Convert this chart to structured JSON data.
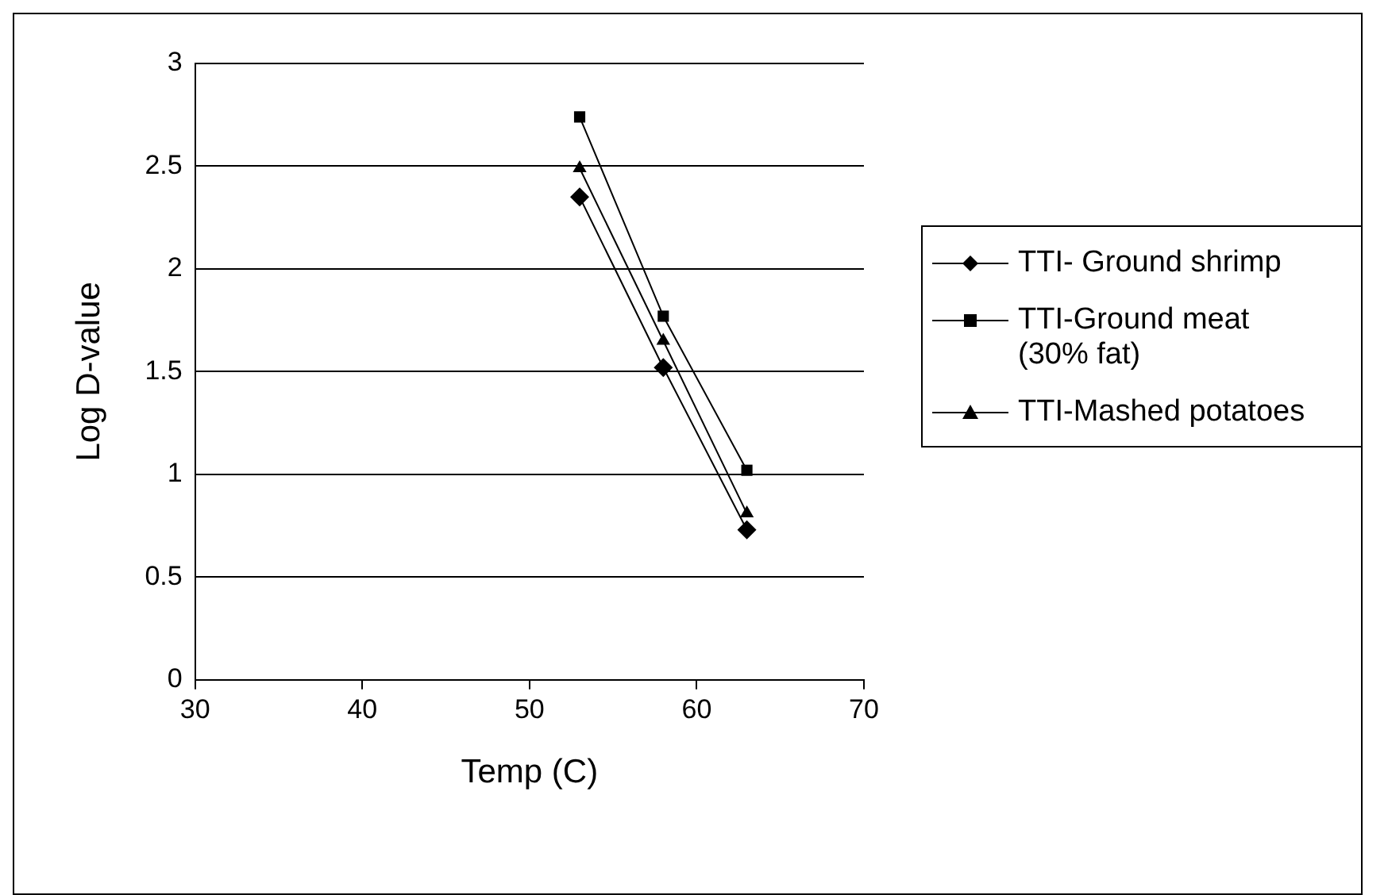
{
  "chart_data": {
    "type": "line",
    "xlabel": "Temp (C)",
    "ylabel": "Log D-value",
    "x": [
      53,
      58,
      63
    ],
    "series": [
      {
        "name": "TTI- Ground shrimp",
        "color": "#000000",
        "marker": "diamond",
        "values": [
          2.35,
          1.52,
          0.73
        ]
      },
      {
        "name": "TTI-Ground meat (30% fat)",
        "color": "#000000",
        "marker": "square",
        "values": [
          2.74,
          1.77,
          1.02
        ]
      },
      {
        "name": "TTI-Mashed potatoes",
        "color": "#000000",
        "marker": "triangle",
        "values": [
          2.49,
          1.65,
          0.81
        ]
      }
    ],
    "xlim": [
      30,
      70
    ],
    "xticks": [
      30,
      40,
      50,
      60,
      70
    ],
    "ylim": [
      0,
      3
    ],
    "yticks": [
      0,
      0.5,
      1,
      1.5,
      2,
      2.5,
      3
    ],
    "grid": "y",
    "legend": "right",
    "line_style": "solid"
  }
}
